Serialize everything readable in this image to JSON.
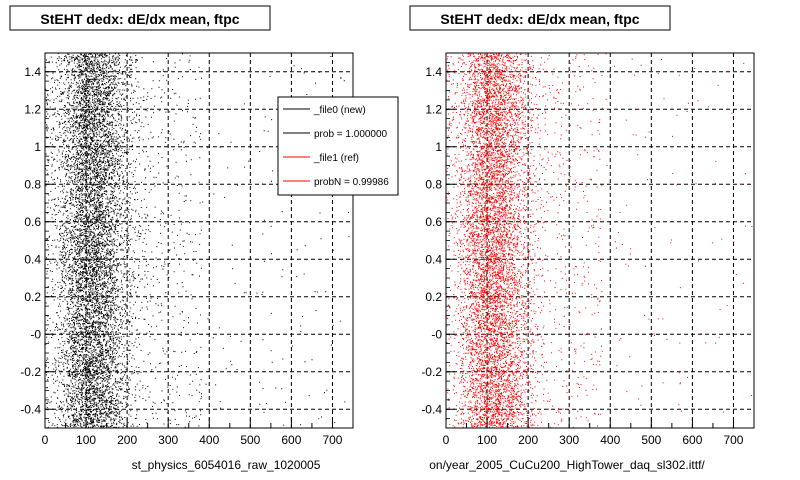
{
  "chart_data": [
    {
      "type": "scatter",
      "title": "StEHT dedx: dE/dx mean, ftpc",
      "xlabel": "st_physics_6054016_raw_1020005",
      "ylabel": "",
      "xlim": [
        0,
        750
      ],
      "ylim": [
        -0.5,
        1.5
      ],
      "xticks": [
        "0",
        "100",
        "200",
        "300",
        "400",
        "500",
        "600",
        "700"
      ],
      "yticks": [
        "-0.4",
        "-0.2",
        "-0",
        "0.2",
        "0.4",
        "0.6",
        "0.8",
        "1",
        "1.2",
        "1.4"
      ],
      "grid": true,
      "series": [
        {
          "name": "_file0 (new)",
          "color": "#000000",
          "x_center": 115,
          "x_spread": 45,
          "approx_points": 9000
        }
      ],
      "legend": {
        "placement": "top-right",
        "entries": [
          {
            "label": "_file0 (new)",
            "color": "#000000"
          },
          {
            "label": "prob = 1.000000",
            "color": "#000000"
          },
          {
            "label": "_file1 (ref)",
            "color": "#ff0000"
          },
          {
            "label": "probN = 0.99986",
            "color": "#ff0000"
          }
        ]
      }
    },
    {
      "type": "scatter",
      "title": "StEHT dedx: dE/dx mean, ftpc",
      "xlabel": "on/year_2005_CuCu200_HighTower_daq_sl302.ittf/",
      "ylabel": "",
      "xlim": [
        0,
        750
      ],
      "ylim": [
        -0.5,
        1.5
      ],
      "xticks": [
        "0",
        "100",
        "200",
        "300",
        "400",
        "500",
        "600",
        "700"
      ],
      "yticks": [
        "-0.4",
        "-0.2",
        "-0",
        "0.2",
        "0.4",
        "0.6",
        "0.8",
        "1",
        "1.2",
        "1.4"
      ],
      "grid": true,
      "series": [
        {
          "name": "",
          "color": "#ff0000",
          "x_center": 115,
          "x_spread": 45,
          "approx_points": 8000
        }
      ]
    }
  ]
}
